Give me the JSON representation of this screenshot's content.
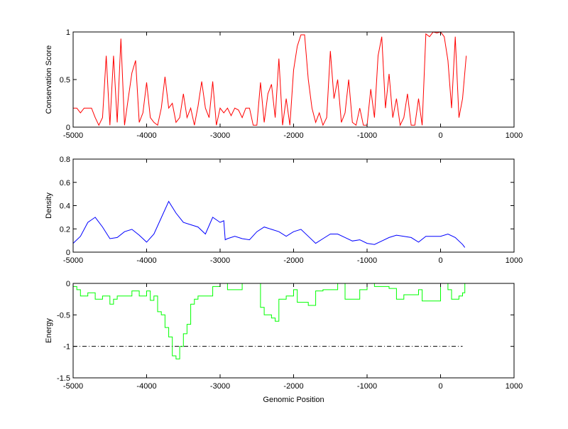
{
  "chart_data": [
    {
      "type": "line",
      "title": "",
      "xlabel": "",
      "ylabel": "Conservation Score",
      "xlim": [
        -5000,
        1000
      ],
      "ylim": [
        0,
        1
      ],
      "xticks": [
        -5000,
        -4000,
        -3000,
        -2000,
        -1000,
        0,
        1000
      ],
      "yticks": [
        0,
        0.5,
        1
      ],
      "color": "#ff0000",
      "x_start": -5000,
      "x_step": 50,
      "values": [
        0.2,
        0.2,
        0.15,
        0.2,
        0.2,
        0.2,
        0.1,
        0.02,
        0.1,
        0.75,
        0.02,
        0.75,
        0.05,
        0.93,
        0.02,
        0.3,
        0.57,
        0.7,
        0.05,
        0.15,
        0.47,
        0.1,
        0.05,
        0.02,
        0.2,
        0.53,
        0.2,
        0.25,
        0.05,
        0.1,
        0.35,
        0.1,
        0.2,
        0.02,
        0.22,
        0.48,
        0.2,
        0.1,
        0.48,
        0.02,
        0.2,
        0.15,
        0.2,
        0.12,
        0.2,
        0.18,
        0.1,
        0.2,
        0.2,
        0.02,
        0.02,
        0.47,
        0.05,
        0.35,
        0.45,
        0.1,
        0.72,
        0.02,
        0.3,
        0.02,
        0.6,
        0.85,
        0.97,
        0.97,
        0.5,
        0.2,
        0.05,
        0.15,
        0.02,
        0.1,
        0.8,
        0.3,
        0.5,
        0.05,
        0.15,
        0.5,
        0.05,
        0.02,
        0.2,
        0.02,
        0.02,
        0.4,
        0.1,
        0.75,
        0.95,
        0.2,
        0.56,
        0.1,
        0.3,
        0.02,
        0.1,
        0.35,
        0.02,
        0.02,
        0.3,
        0.02,
        0.98,
        0.95,
        1.0,
        0.99,
        1.0,
        0.95,
        0.7,
        0.2,
        0.95,
        0.1,
        0.3,
        0.75
      ]
    },
    {
      "type": "line",
      "ylabel": "Density",
      "xlabel": "",
      "xlim": [
        -5000,
        1000
      ],
      "ylim": [
        0,
        0.8
      ],
      "xticks": [
        -5000,
        -4000,
        -3000,
        -2000,
        -1000,
        0,
        1000
      ],
      "yticks": [
        0,
        0.2,
        0.4,
        0.6,
        0.8
      ],
      "color": "#0000ff",
      "x": [
        -5000,
        -4900,
        -4800,
        -4700,
        -4600,
        -4500,
        -4400,
        -4300,
        -4200,
        -4100,
        -4000,
        -3900,
        -3800,
        -3700,
        -3600,
        -3500,
        -3400,
        -3300,
        -3200,
        -3100,
        -3000,
        -2950,
        -2930,
        -2900,
        -2800,
        -2700,
        -2600,
        -2500,
        -2400,
        -2300,
        -2200,
        -2100,
        -2000,
        -1900,
        -1800,
        -1700,
        -1600,
        -1500,
        -1400,
        -1300,
        -1200,
        -1100,
        -1000,
        -900,
        -800,
        -700,
        -600,
        -500,
        -400,
        -300,
        -200,
        -100,
        0,
        100,
        200,
        300,
        330
      ],
      "values": [
        0.076,
        0.136,
        0.256,
        0.3,
        0.216,
        0.116,
        0.126,
        0.176,
        0.196,
        0.146,
        0.086,
        0.156,
        0.296,
        0.436,
        0.336,
        0.256,
        0.236,
        0.216,
        0.156,
        0.3,
        0.256,
        0.27,
        0.106,
        0.116,
        0.136,
        0.116,
        0.106,
        0.176,
        0.216,
        0.196,
        0.176,
        0.136,
        0.176,
        0.196,
        0.136,
        0.076,
        0.116,
        0.156,
        0.156,
        0.126,
        0.096,
        0.106,
        0.076,
        0.066,
        0.096,
        0.126,
        0.146,
        0.136,
        0.126,
        0.086,
        0.136,
        0.136,
        0.136,
        0.156,
        0.126,
        0.066,
        0.04
      ]
    },
    {
      "type": "line",
      "ylabel": "Energy",
      "xlabel": "Genomic Position",
      "xlim": [
        -5000,
        1000
      ],
      "ylim": [
        -1.5,
        0
      ],
      "xticks": [
        -5000,
        -4000,
        -3000,
        -2000,
        -1000,
        0,
        1000
      ],
      "yticks": [
        -1.5,
        -1,
        -0.5,
        0
      ],
      "color": "#00ff00",
      "step": true,
      "x": [
        -5000,
        -4950,
        -4900,
        -4800,
        -4700,
        -4600,
        -4500,
        -4450,
        -4400,
        -4300,
        -4200,
        -4100,
        -4000,
        -3950,
        -3900,
        -3850,
        -3800,
        -3750,
        -3700,
        -3650,
        -3600,
        -3550,
        -3500,
        -3450,
        -3400,
        -3350,
        -3300,
        -3200,
        -3100,
        -3000,
        -2900,
        -2800,
        -2700,
        -2600,
        -2500,
        -2450,
        -2400,
        -2300,
        -2250,
        -2200,
        -2100,
        -2000,
        -1950,
        -1800,
        -1700,
        -1600,
        -1400,
        -1300,
        -1100,
        -1000,
        -900,
        -700,
        -600,
        -500,
        -400,
        -300,
        -250,
        0,
        100,
        150,
        250,
        300,
        330
      ],
      "values": [
        -0.05,
        -0.1,
        -0.2,
        -0.15,
        -0.25,
        -0.2,
        -0.33,
        -0.25,
        -0.2,
        -0.2,
        -0.12,
        -0.2,
        -0.12,
        -0.27,
        -0.2,
        -0.45,
        -0.5,
        -0.7,
        -0.85,
        -1.15,
        -1.2,
        -1.0,
        -0.8,
        -0.65,
        -0.33,
        -0.25,
        -0.2,
        -0.2,
        -0.05,
        0,
        -0.1,
        -0.1,
        0,
        0,
        0,
        -0.38,
        -0.5,
        -0.55,
        -0.6,
        -0.25,
        -0.2,
        -0.1,
        -0.3,
        -0.35,
        -0.12,
        -0.1,
        0,
        -0.25,
        -0.1,
        0,
        -0.05,
        -0.08,
        -0.25,
        -0.18,
        -0.18,
        -0.1,
        -0.28,
        0,
        -0.1,
        -0.25,
        -0.2,
        -0.15,
        0
      ],
      "reference_line": {
        "y": -1,
        "x_range": [
          -5000,
          300
        ],
        "style": "dash-dot",
        "color": "#000000"
      }
    }
  ]
}
